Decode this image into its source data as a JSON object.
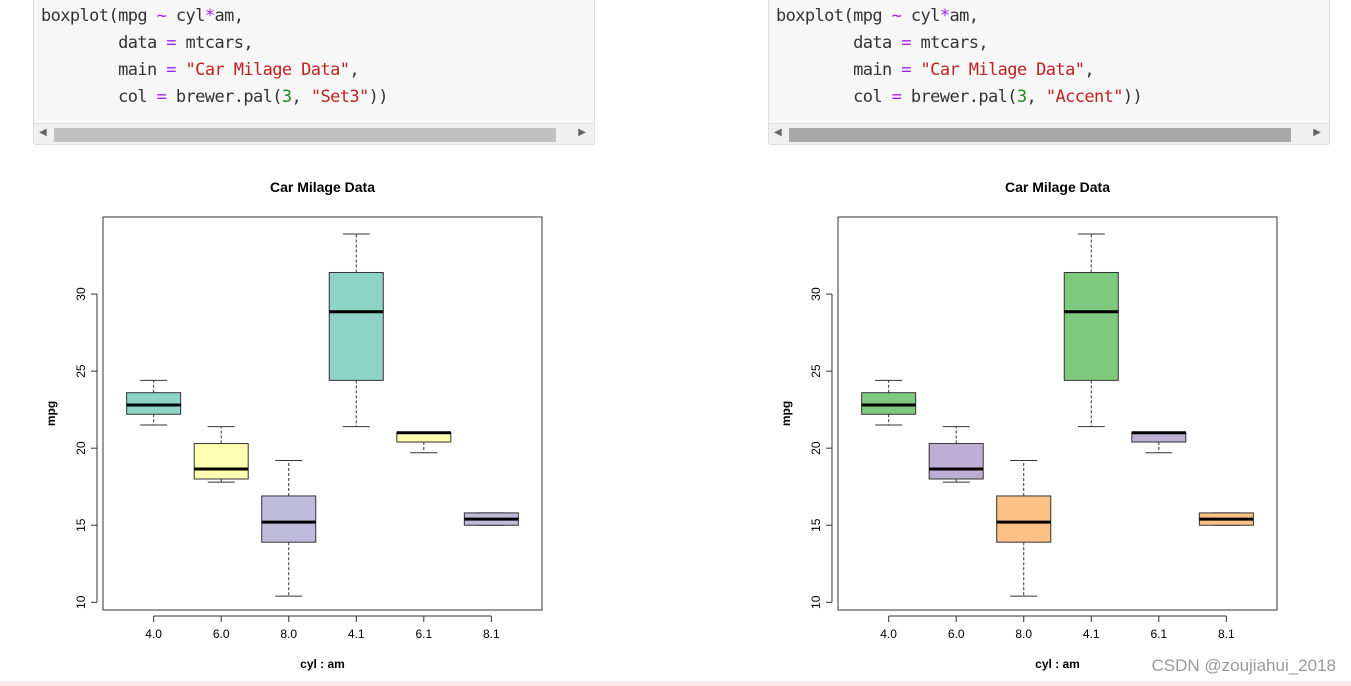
{
  "code_blocks": [
    {
      "lines": [
        [
          {
            "t": "boxplot(mpg "
          },
          {
            "t": "~",
            "c": "op"
          },
          {
            "t": " cyl"
          },
          {
            "t": "*",
            "c": "op"
          },
          {
            "t": "am,"
          }
        ],
        [
          {
            "t": "        data "
          },
          {
            "t": "=",
            "c": "op"
          },
          {
            "t": " mtcars,"
          }
        ],
        [
          {
            "t": "        main "
          },
          {
            "t": "=",
            "c": "op"
          },
          {
            "t": " "
          },
          {
            "t": "\"Car Milage Data\"",
            "c": "str"
          },
          {
            "t": ","
          }
        ],
        [
          {
            "t": "        col "
          },
          {
            "t": "=",
            "c": "op"
          },
          {
            "t": " brewer.pal("
          },
          {
            "t": "3",
            "c": "num"
          },
          {
            "t": ", "
          },
          {
            "t": "\"Set3\"",
            "c": "str"
          },
          {
            "t": "))"
          }
        ]
      ]
    },
    {
      "lines": [
        [
          {
            "t": "boxplot(mpg "
          },
          {
            "t": "~",
            "c": "op"
          },
          {
            "t": " cyl"
          },
          {
            "t": "*",
            "c": "op"
          },
          {
            "t": "am,"
          }
        ],
        [
          {
            "t": "        data "
          },
          {
            "t": "=",
            "c": "op"
          },
          {
            "t": " mtcars,"
          }
        ],
        [
          {
            "t": "        main "
          },
          {
            "t": "=",
            "c": "op"
          },
          {
            "t": " "
          },
          {
            "t": "\"Car Milage Data\"",
            "c": "str"
          },
          {
            "t": ","
          }
        ],
        [
          {
            "t": "        col "
          },
          {
            "t": "=",
            "c": "op"
          },
          {
            "t": " brewer.pal("
          },
          {
            "t": "3",
            "c": "num"
          },
          {
            "t": ", "
          },
          {
            "t": "\"Accent\"",
            "c": "str"
          },
          {
            "t": "))"
          }
        ]
      ]
    }
  ],
  "chart_data": [
    {
      "type": "box",
      "title": "Car Milage Data",
      "xlabel": "cyl : am",
      "ylabel": "mpg",
      "ylim": [
        10,
        35
      ],
      "yticks": [
        10,
        15,
        20,
        25,
        30
      ],
      "grid": false,
      "categories": [
        "4.0",
        "6.0",
        "8.0",
        "4.1",
        "6.1",
        "8.1"
      ],
      "boxes": [
        {
          "min": 21.5,
          "q1": 22.2,
          "median": 22.8,
          "q3": 23.6,
          "max": 24.4,
          "color": "#8DD3C7"
        },
        {
          "min": 17.8,
          "q1": 18.0,
          "median": 18.65,
          "q3": 20.3,
          "max": 21.4,
          "color": "#FFFFB3"
        },
        {
          "min": 10.4,
          "q1": 13.9,
          "median": 15.2,
          "q3": 16.9,
          "max": 19.2,
          "color": "#BEBADA"
        },
        {
          "min": 21.4,
          "q1": 24.4,
          "median": 28.85,
          "q3": 31.4,
          "max": 33.9,
          "color": "#8DD3C7"
        },
        {
          "min": 19.7,
          "q1": 20.4,
          "median": 21.0,
          "q3": 21.0,
          "max": 21.0,
          "color": "#FFFFB3"
        },
        {
          "min": 15.0,
          "q1": 15.0,
          "median": 15.4,
          "q3": 15.8,
          "max": 15.8,
          "color": "#BEBADA"
        }
      ]
    },
    {
      "type": "box",
      "title": "Car Milage Data",
      "xlabel": "cyl : am",
      "ylabel": "mpg",
      "ylim": [
        10,
        35
      ],
      "yticks": [
        10,
        15,
        20,
        25,
        30
      ],
      "grid": false,
      "categories": [
        "4.0",
        "6.0",
        "8.0",
        "4.1",
        "6.1",
        "8.1"
      ],
      "boxes": [
        {
          "min": 21.5,
          "q1": 22.2,
          "median": 22.8,
          "q3": 23.6,
          "max": 24.4,
          "color": "#7FC97F"
        },
        {
          "min": 17.8,
          "q1": 18.0,
          "median": 18.65,
          "q3": 20.3,
          "max": 21.4,
          "color": "#BEAED4"
        },
        {
          "min": 10.4,
          "q1": 13.9,
          "median": 15.2,
          "q3": 16.9,
          "max": 19.2,
          "color": "#FDC086"
        },
        {
          "min": 21.4,
          "q1": 24.4,
          "median": 28.85,
          "q3": 31.4,
          "max": 33.9,
          "color": "#7FC97F"
        },
        {
          "min": 19.7,
          "q1": 20.4,
          "median": 21.0,
          "q3": 21.0,
          "max": 21.0,
          "color": "#BEAED4"
        },
        {
          "min": 15.0,
          "q1": 15.0,
          "median": 15.4,
          "q3": 15.8,
          "max": 15.8,
          "color": "#FDC086"
        }
      ]
    }
  ],
  "watermark": "CSDN @zoujiahui_2018",
  "scrollbar": {
    "left_arrow": "◀",
    "right_arrow": "▶"
  }
}
